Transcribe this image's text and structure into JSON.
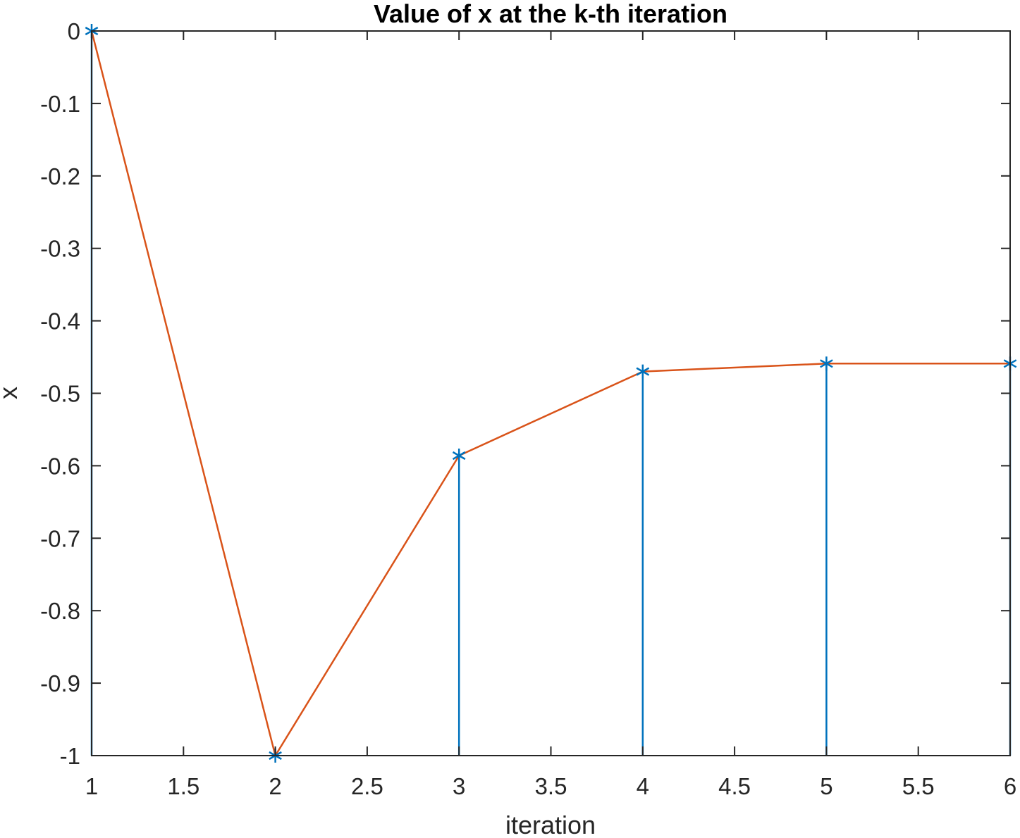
{
  "chart_data": {
    "type": "line",
    "title": "Value of x at the k-th iteration",
    "xlabel": "iteration",
    "ylabel": "x",
    "xlim": [
      1,
      6
    ],
    "ylim": [
      -1,
      0
    ],
    "xticks": [
      1,
      1.5,
      2,
      2.5,
      3,
      3.5,
      4,
      4.5,
      5,
      5.5,
      6
    ],
    "xtick_labels": [
      "1",
      "1.5",
      "2",
      "2.5",
      "3",
      "3.5",
      "4",
      "4.5",
      "5",
      "5.5",
      "6"
    ],
    "yticks": [
      0,
      -0.1,
      -0.2,
      -0.3,
      -0.4,
      -0.5,
      -0.6,
      -0.7,
      -0.8,
      -0.9,
      -1
    ],
    "ytick_labels": [
      "0",
      "-0.1",
      "-0.2",
      "-0.3",
      "-0.4",
      "-0.5",
      "-0.6",
      "-0.7",
      "-0.8",
      "-0.9",
      "-1"
    ],
    "grid": false,
    "x": [
      1,
      2,
      3,
      4,
      5,
      6
    ],
    "series": [
      {
        "style": "stem",
        "marker": "asterisk",
        "color": "#0072BD",
        "values": [
          0,
          -1,
          -0.586,
          -0.47,
          -0.459,
          -0.459
        ]
      },
      {
        "style": "line",
        "color": "#D95319",
        "values": [
          0,
          -1,
          -0.586,
          -0.47,
          -0.459,
          -0.459
        ]
      }
    ],
    "axes_color": "#262626"
  }
}
